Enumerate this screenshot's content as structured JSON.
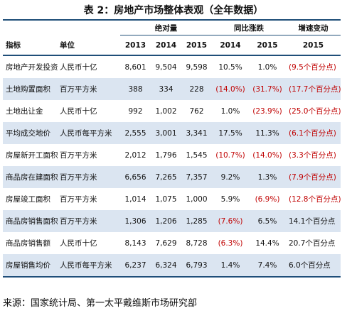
{
  "title": "表 2：房地产市场整体表观（全年数据）",
  "headers": {
    "group_absolute": "绝对量",
    "group_yoy": "同比涨跌",
    "group_growth": "增速变动",
    "indicator": "指标",
    "unit": "单位",
    "abs_years": [
      "2013",
      "2014",
      "2015"
    ],
    "yoy_years": [
      "2014",
      "2015"
    ],
    "growth_year": "2015"
  },
  "rows": [
    {
      "indicator": "房地产开发投资",
      "unit": "人民币十亿",
      "v2013": "8,601",
      "v2014": "9,504",
      "v2015": "9,598",
      "yoy2014": "10.5%",
      "yoy2015": "1.0%",
      "growth": "(9.5个百分点)"
    },
    {
      "indicator": "土地购置面积",
      "unit": "百万平方米",
      "v2013": "388",
      "v2014": "334",
      "v2015": "228",
      "yoy2014": "(14.0%)",
      "yoy2015": "(31.7%)",
      "growth": "(17.7个百分点)"
    },
    {
      "indicator": "土地出让金",
      "unit": "人民币十亿",
      "v2013": "992",
      "v2014": "1,002",
      "v2015": "762",
      "yoy2014": "1.0%",
      "yoy2015": "(23.9%)",
      "growth": "(25.0个百分点)"
    },
    {
      "indicator": "平均成交地价",
      "unit": "人民币每平方米",
      "v2013": "2,555",
      "v2014": "3,001",
      "v2015": "3,341",
      "yoy2014": "17.5%",
      "yoy2015": "11.3%",
      "growth": "(6.1个百分点)"
    },
    {
      "indicator": "房屋新开工面积",
      "unit": "百万平方米",
      "v2013": "2,012",
      "v2014": "1,796",
      "v2015": "1,545",
      "yoy2014": "(10.7%)",
      "yoy2015": "(14.0%)",
      "growth": "(3.3个百分点)"
    },
    {
      "indicator": "商品房在建面积",
      "unit": "百万平方米",
      "v2013": "6,656",
      "v2014": "7,265",
      "v2015": "7,357",
      "yoy2014": "9.2%",
      "yoy2015": "1.3%",
      "growth": "(7.9个百分点)"
    },
    {
      "indicator": "房屋竣工面积",
      "unit": "百万平方米",
      "v2013": "1,014",
      "v2014": "1,075",
      "v2015": "1,000",
      "yoy2014": "5.9%",
      "yoy2015": "(6.9%)",
      "growth": "(12.8个百分点)"
    },
    {
      "indicator": "商品房销售面积",
      "unit": "百万平方米",
      "v2013": "1,306",
      "v2014": "1,206",
      "v2015": "1,285",
      "yoy2014": "(7.6%)",
      "yoy2015": "6.5%",
      "growth": "14.1个百分点"
    },
    {
      "indicator": "商品房销售额",
      "unit": "人民币十亿",
      "v2013": "8,143",
      "v2014": "7,629",
      "v2015": "8,728",
      "yoy2014": "(6.3%)",
      "yoy2015": "14.4%",
      "growth": "20.7个百分点"
    },
    {
      "indicator": "房屋销售均价",
      "unit": "人民币每平方米",
      "v2013": "6,237",
      "v2014": "6,324",
      "v2015": "6,793",
      "yoy2014": "1.4%",
      "yoy2015": "7.4%",
      "growth": "6.0个百分点"
    }
  ],
  "source": "来源：国家统计局、第一太平戴维斯市场研究部",
  "colors": {
    "shade": "#dbe5f1",
    "rule": "#1f4e79",
    "negative": "#c00000"
  }
}
